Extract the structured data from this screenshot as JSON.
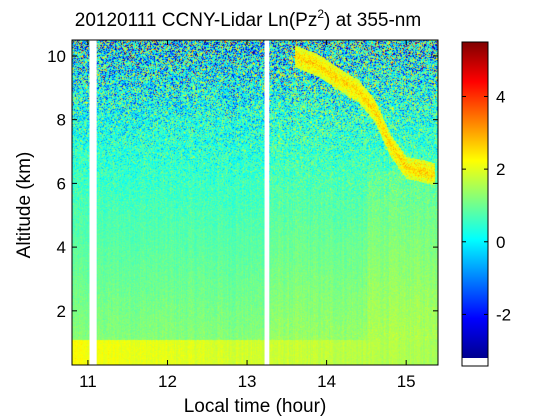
{
  "chart_data": {
    "type": "heatmap",
    "title": {
      "prefix": "20120111 CCNY-Lidar Ln(Pz",
      "superscript": "2",
      "suffix": ") at 355-nm"
    },
    "xlabel": "Local time (hour)",
    "ylabel": "Altitude (km)",
    "xlim": [
      10.8,
      15.4
    ],
    "ylim": [
      0.3,
      10.5
    ],
    "xticks": [
      11,
      12,
      13,
      14,
      15
    ],
    "yticks": [
      2,
      4,
      6,
      8,
      10
    ],
    "colorbar": {
      "vmin": -3.2,
      "vmax": 5.5,
      "ticks": [
        -2,
        0,
        2,
        4
      ],
      "tick_labels": [
        "-2",
        "0",
        "2",
        "4"
      ],
      "colormap": "jet"
    },
    "data_gaps": [
      [
        11.02,
        11.11
      ],
      [
        13.22,
        13.28
      ]
    ],
    "features": {
      "boundary_layer": {
        "top_km": 1.1,
        "value": 2.0
      },
      "cloud_layer": {
        "time_points": [
          13.6,
          13.9,
          14.2,
          14.4,
          14.6,
          14.8,
          15.0,
          15.2,
          15.35
        ],
        "altitude_km": [
          10.0,
          9.7,
          9.2,
          8.9,
          8.3,
          7.2,
          6.5,
          6.4,
          6.3
        ],
        "value": 2.6
      }
    }
  }
}
